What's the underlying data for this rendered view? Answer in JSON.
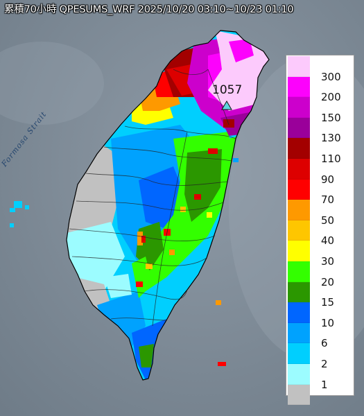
{
  "title": "累積70小時 QPESUMS_WRF 2025/10/20 03:10~10/23 01:10",
  "strait_label": "Formosa Strait",
  "max_station": {
    "value_label": "1057",
    "marker": "triangle-icon",
    "color": "#5ed5e0"
  },
  "legend": {
    "unit_levels": [
      {
        "label": "300",
        "color": "#fccafc"
      },
      {
        "label": "200",
        "color": "#fc02fc"
      },
      {
        "label": "150",
        "color": "#cc00cc"
      },
      {
        "label": "130",
        "color": "#9a009a"
      },
      {
        "label": "110",
        "color": "#a30000"
      },
      {
        "label": "90",
        "color": "#dd0000"
      },
      {
        "label": "70",
        "color": "#ff0000"
      },
      {
        "label": "50",
        "color": "#fe9900"
      },
      {
        "label": "40",
        "color": "#fec600"
      },
      {
        "label": "30",
        "color": "#ffff00"
      },
      {
        "label": "20",
        "color": "#33ff00"
      },
      {
        "label": "15",
        "color": "#2b9700"
      },
      {
        "label": "10",
        "color": "#0066ff"
      },
      {
        "label": "6",
        "color": "#00a2fe"
      },
      {
        "label": "2",
        "color": "#00cffe"
      },
      {
        "label": "1",
        "color": "#9cfcff"
      },
      {
        "label": "",
        "color": "#c1c1c1"
      }
    ]
  }
}
